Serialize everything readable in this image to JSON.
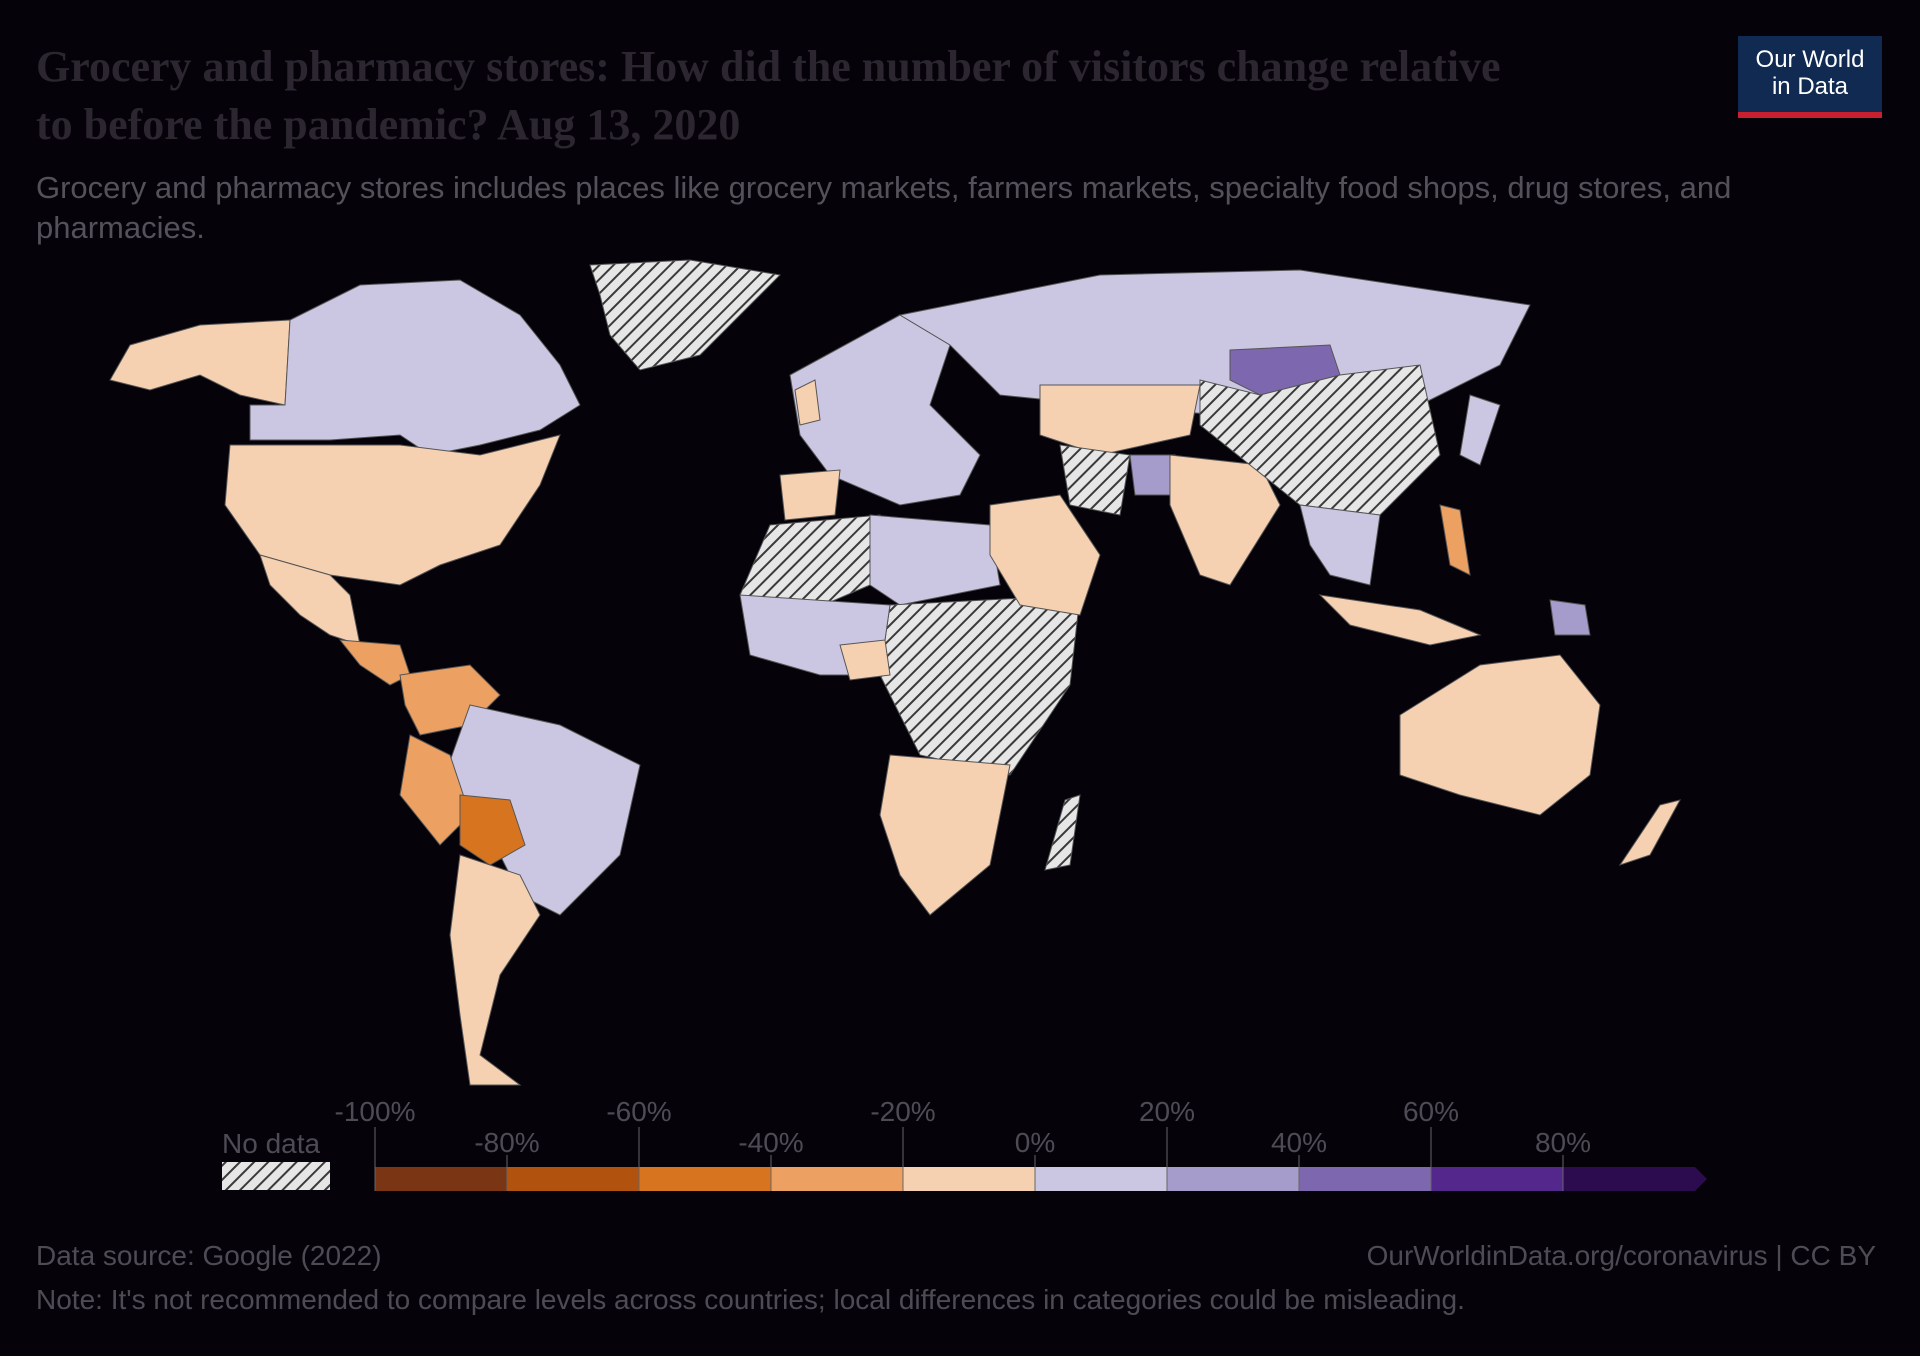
{
  "header": {
    "title": "Grocery and pharmacy stores: How did the number of visitors change relative to before the pandemic? Aug 13, 2020",
    "subtitle": "Grocery and pharmacy stores includes places like grocery markets, farmers markets, specialty food shops, drug stores, and pharmacies."
  },
  "logo": {
    "line1": "Our World",
    "line2": "in Data"
  },
  "legend": {
    "no_data_label": "No data",
    "ticks_upper": [
      "-100%",
      "-60%",
      "-20%",
      "20%",
      "60%"
    ],
    "ticks_lower": [
      "-80%",
      "-40%",
      "0%",
      "40%",
      "80%"
    ],
    "bins": [
      {
        "from": -100,
        "to": -80,
        "color": "#7a3614"
      },
      {
        "from": -80,
        "to": -60,
        "color": "#b2520f"
      },
      {
        "from": -60,
        "to": -40,
        "color": "#d6741f"
      },
      {
        "from": -40,
        "to": -20,
        "color": "#eca163"
      },
      {
        "from": -20,
        "to": 0,
        "color": "#f5d1b1"
      },
      {
        "from": 0,
        "to": 20,
        "color": "#cbc7e2"
      },
      {
        "from": 20,
        "to": 40,
        "color": "#a59ccc"
      },
      {
        "from": 40,
        "to": 60,
        "color": "#7d68b0"
      },
      {
        "from": 60,
        "to": 80,
        "color": "#54278c"
      },
      {
        "from": 80,
        "to": 100,
        "color": "#2d0b4f"
      }
    ]
  },
  "footer": {
    "source": "Data source: Google (2022)",
    "link": "OurWorldinData.org/coronavirus | CC BY",
    "note": "Note: It's not recommended to compare levels across countries; local differences in categories could be misleading."
  }
}
